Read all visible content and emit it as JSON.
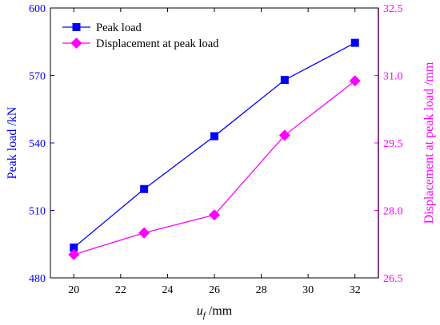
{
  "chart_data": {
    "type": "line",
    "x": [
      20,
      23,
      26,
      29,
      32
    ],
    "xlim": [
      19,
      33
    ],
    "x_ticks": [
      20,
      22,
      24,
      26,
      28,
      30,
      32
    ],
    "xlabel": {
      "var": "u",
      "sub": "f",
      "unit": " /mm"
    },
    "series": [
      {
        "name": "Peak load",
        "axis": "left",
        "color": "#0000ff",
        "marker": "square",
        "values": [
          493.5,
          519.5,
          543,
          568,
          584.5
        ]
      },
      {
        "name": "Displacement at peak load",
        "axis": "right",
        "color": "#ff00ff",
        "marker": "diamond",
        "values": [
          27.02,
          27.5,
          27.9,
          29.67,
          30.88
        ]
      }
    ],
    "y_left": {
      "label": "Peak load /kN",
      "color": "#0000ff",
      "ylim": [
        480,
        600
      ],
      "ticks": [
        480,
        510,
        540,
        570,
        600
      ]
    },
    "y_right": {
      "label": "Displacement at peak load /mm",
      "color": "#ff00ff",
      "ylim": [
        26.5,
        32.5
      ],
      "ticks": [
        "26.5",
        "28.0",
        "29.5",
        "31.0",
        "32.5"
      ]
    },
    "legend": {
      "placement": "top-left"
    },
    "grid": false
  }
}
